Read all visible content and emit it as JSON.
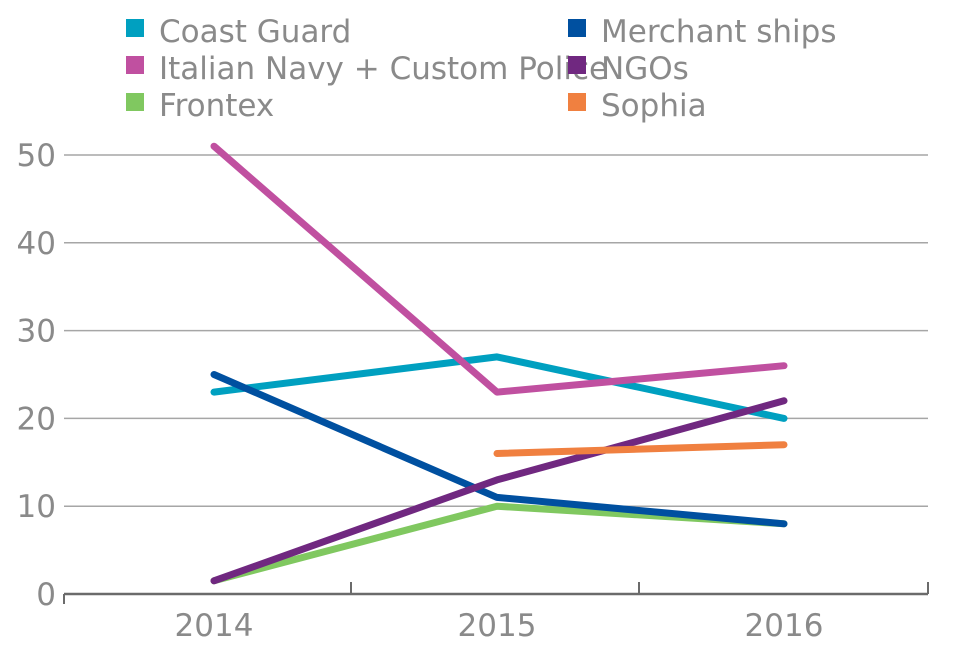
{
  "chart_data": {
    "type": "line",
    "title": "",
    "xlabel": "",
    "ylabel": "",
    "categories": [
      "2014",
      "2015",
      "2016"
    ],
    "y_ticks": [
      "0",
      "10",
      "20",
      "30",
      "40",
      "50"
    ],
    "ylim": [
      0,
      50
    ],
    "grid": true,
    "legend_position": "top",
    "series": [
      {
        "name": "Coast Guard",
        "color": "#00a0c0",
        "values": [
          23,
          27,
          20
        ]
      },
      {
        "name": "Italian Navy + Custom Police",
        "color": "#c050a0",
        "values": [
          51,
          23,
          26
        ]
      },
      {
        "name": "Frontex",
        "color": "#80c860",
        "values": [
          1.5,
          10,
          8
        ]
      },
      {
        "name": "Merchant ships",
        "color": "#0050a0",
        "values": [
          25,
          11,
          8
        ]
      },
      {
        "name": "NGOs",
        "color": "#702880",
        "values": [
          1.5,
          13,
          22
        ]
      },
      {
        "name": "Sophia",
        "color": "#f08040",
        "values": [
          null,
          16,
          17
        ]
      }
    ]
  }
}
